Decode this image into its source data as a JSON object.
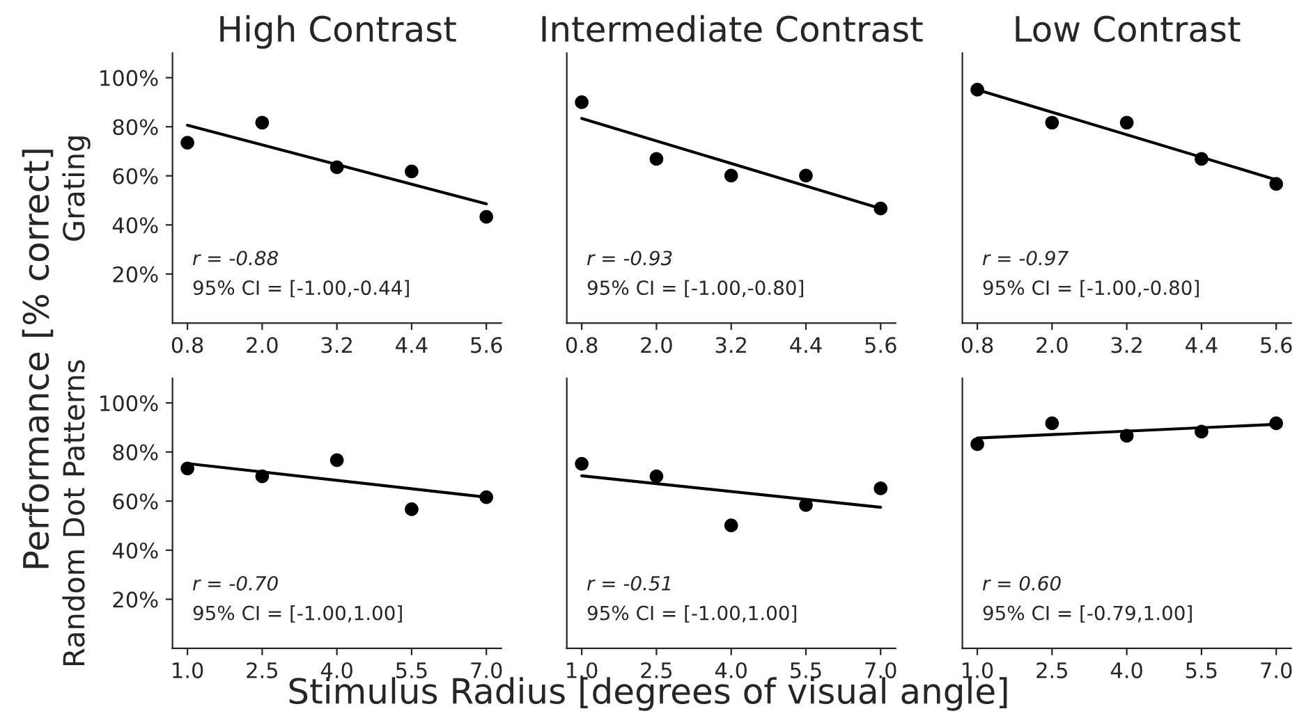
{
  "chart_data": [
    {
      "type": "scatter",
      "title": "High Contrast",
      "ylabel": "Grating",
      "x": [
        0.8,
        2.0,
        3.2,
        4.4,
        5.6
      ],
      "xlim": [
        0.56,
        5.84
      ],
      "xticks": [
        {
          "value": 0.8,
          "label": "0.8"
        },
        {
          "value": 2.0,
          "label": "2.0"
        },
        {
          "value": 3.2,
          "label": "3.2"
        },
        {
          "value": 4.4,
          "label": "4.4"
        },
        {
          "value": 5.6,
          "label": "5.6"
        }
      ],
      "ylim": [
        0,
        110
      ],
      "yticks": [
        {
          "value": 20,
          "label": "20%"
        },
        {
          "value": 40,
          "label": "40%"
        },
        {
          "value": 60,
          "label": "60%"
        },
        {
          "value": 80,
          "label": "80%"
        },
        {
          "value": 100,
          "label": "100%"
        }
      ],
      "series": [
        {
          "marker": "circle",
          "color": "#000000",
          "values": [
            73.5,
            81.7,
            63.5,
            61.8,
            43.3
          ]
        },
        {
          "type": "line",
          "color": "#000000",
          "x": [
            0.8,
            5.6
          ],
          "values": [
            80.6,
            48.6
          ]
        }
      ],
      "annotations": [
        "r = -0.88",
        "95% CI = [-1.00,-0.44]",
        "Performance [% correct]"
      ]
    },
    {
      "type": "scatter",
      "title": "Intermediate Contrast",
      "x": [
        0.8,
        2.0,
        3.2,
        4.4,
        5.6
      ],
      "xlim": [
        0.56,
        5.84
      ],
      "xticks": [
        {
          "value": 0.8,
          "label": "0.8"
        },
        {
          "value": 2.0,
          "label": "2.0"
        },
        {
          "value": 3.2,
          "label": "3.2"
        },
        {
          "value": 4.4,
          "label": "4.4"
        },
        {
          "value": 5.6,
          "label": "5.6"
        }
      ],
      "ylim": [
        0,
        110
      ],
      "tick_labels": "x",
      "series": [
        {
          "marker": "circle",
          "color": "#000000",
          "values": [
            90.0,
            66.9,
            60.1,
            60.1,
            46.7
          ]
        },
        {
          "type": "line",
          "color": "#000000",
          "x": [
            0.8,
            5.6
          ],
          "values": [
            83.4,
            46.7
          ]
        }
      ],
      "annotations": [
        "r = -0.93",
        "95% CI = [-1.00,-0.80]"
      ]
    },
    {
      "type": "scatter",
      "title": "Low Contrast",
      "x": [
        0.8,
        2.0,
        3.2,
        4.4,
        5.6
      ],
      "xlim": [
        0.56,
        5.84
      ],
      "xticks": [
        {
          "value": 0.8,
          "label": "0.8"
        },
        {
          "value": 2.0,
          "label": "2.0"
        },
        {
          "value": 3.2,
          "label": "3.2"
        },
        {
          "value": 4.4,
          "label": "4.4"
        },
        {
          "value": 5.6,
          "label": "5.6"
        }
      ],
      "ylim": [
        0,
        110
      ],
      "tick_labels": "x",
      "series": [
        {
          "marker": "circle",
          "color": "#000000",
          "values": [
            95.1,
            81.7,
            81.7,
            66.9,
            56.7
          ]
        },
        {
          "type": "line",
          "color": "#000000",
          "x": [
            0.8,
            5.6
          ],
          "values": [
            95.1,
            58.4
          ]
        }
      ],
      "annotations": [
        "r = -0.97",
        "95% CI = [-1.00,-0.80]"
      ]
    },
    {
      "type": "scatter",
      "ylabel": "Random Dot Patterns",
      "x": [
        1.0,
        2.5,
        4.0,
        5.5,
        7.0
      ],
      "xlim": [
        0.7,
        7.3
      ],
      "xticks": [
        {
          "value": 1.0,
          "label": "1.0"
        },
        {
          "value": 2.5,
          "label": "2.5"
        },
        {
          "value": 4.0,
          "label": "4.0"
        },
        {
          "value": 5.5,
          "label": "5.5"
        },
        {
          "value": 7.0,
          "label": "7.0"
        }
      ],
      "ylim": [
        0,
        110
      ],
      "yticks": [
        {
          "value": 20,
          "label": "20%"
        },
        {
          "value": 40,
          "label": "40%"
        },
        {
          "value": 60,
          "label": "60%"
        },
        {
          "value": 80,
          "label": "80%"
        },
        {
          "value": 100,
          "label": "100%"
        }
      ],
      "series": [
        {
          "marker": "circle",
          "color": "#000000",
          "values": [
            73.3,
            70.1,
            76.7,
            56.7,
            61.6
          ]
        },
        {
          "type": "line",
          "color": "#000000",
          "x": [
            1.0,
            7.0
          ],
          "values": [
            75.3,
            61.6
          ]
        }
      ],
      "annotations": [
        "r = -0.70",
        "95% CI = [-1.00,1.00]"
      ]
    },
    {
      "type": "scatter",
      "x": [
        1.0,
        2.5,
        4.0,
        5.5,
        7.0
      ],
      "xlim": [
        0.7,
        7.3
      ],
      "xticks": [
        {
          "value": 1.0,
          "label": "1.0"
        },
        {
          "value": 2.5,
          "label": "2.5"
        },
        {
          "value": 4.0,
          "label": "4.0"
        },
        {
          "value": 5.5,
          "label": "5.5"
        },
        {
          "value": 7.0,
          "label": "7.0"
        }
      ],
      "ylim": [
        0,
        110
      ],
      "tick_labels": "x",
      "series": [
        {
          "marker": "circle",
          "color": "#000000",
          "values": [
            75.2,
            70.1,
            50.1,
            58.4,
            65.2
          ]
        },
        {
          "type": "line",
          "color": "#000000",
          "x": [
            1.0,
            7.0
          ],
          "values": [
            70.3,
            57.5
          ]
        }
      ],
      "annotations": [
        "r = -0.51",
        "95% CI = [-1.00,1.00]",
        "Stimulus Radius [degrees of visual angle]"
      ]
    },
    {
      "type": "scatter",
      "x": [
        1.0,
        2.5,
        4.0,
        5.5,
        7.0
      ],
      "xlim": [
        0.7,
        7.3
      ],
      "xticks": [
        {
          "value": 1.0,
          "label": "1.0"
        },
        {
          "value": 2.5,
          "label": "2.5"
        },
        {
          "value": 4.0,
          "label": "4.0"
        },
        {
          "value": 5.5,
          "label": "5.5"
        },
        {
          "value": 7.0,
          "label": "7.0"
        }
      ],
      "ylim": [
        0,
        110
      ],
      "tick_labels": "x",
      "series": [
        {
          "marker": "circle",
          "color": "#000000",
          "values": [
            83.2,
            91.7,
            86.6,
            88.3,
            91.7
          ]
        },
        {
          "type": "line",
          "color": "#000000",
          "x": [
            1.0,
            7.0
          ],
          "values": [
            85.7,
            91.3
          ]
        }
      ],
      "annotations": [
        "r = 0.60",
        "95% CI = [-0.79,1.00]"
      ]
    }
  ]
}
